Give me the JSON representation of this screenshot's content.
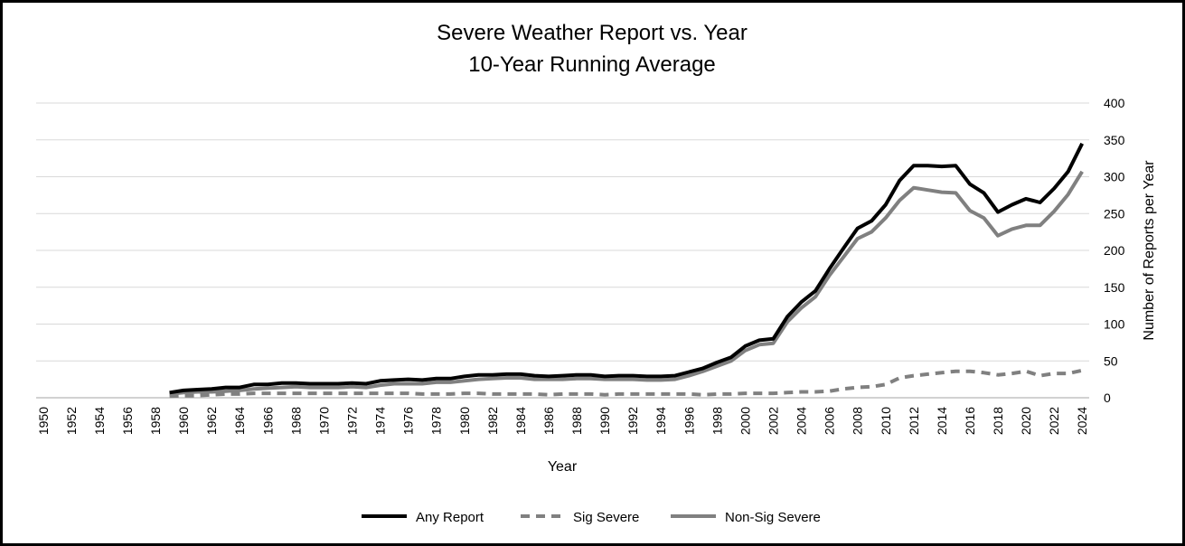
{
  "chart_data": {
    "type": "line",
    "title": "Severe Weather Report vs. Year",
    "subtitle": "10-Year Running Average",
    "xlabel": "Year",
    "ylabel": "Number of Reports per Year",
    "xlim": [
      1950,
      2024
    ],
    "ylim": [
      0,
      400
    ],
    "ytick_step": 50,
    "y_axis_side": "right",
    "x_tick_labels": [
      "1950",
      "1952",
      "1954",
      "1956",
      "1958",
      "1960",
      "1962",
      "1964",
      "1966",
      "1968",
      "1970",
      "1972",
      "1974",
      "1976",
      "1978",
      "1980",
      "1982",
      "1984",
      "1986",
      "1988",
      "1990",
      "1992",
      "1994",
      "1996",
      "1998",
      "2000",
      "2002",
      "2004",
      "2006",
      "2008",
      "2010",
      "2012",
      "2014",
      "2016",
      "2018",
      "2020",
      "2022",
      "2024"
    ],
    "y_tick_labels": [
      "0",
      "50",
      "100",
      "150",
      "200",
      "250",
      "300",
      "350",
      "400"
    ],
    "grid": "horizontal",
    "legend_position": "bottom",
    "x": [
      1959,
      1960,
      1961,
      1962,
      1963,
      1964,
      1965,
      1966,
      1967,
      1968,
      1969,
      1970,
      1971,
      1972,
      1973,
      1974,
      1975,
      1976,
      1977,
      1978,
      1979,
      1980,
      1981,
      1982,
      1983,
      1984,
      1985,
      1986,
      1987,
      1988,
      1989,
      1990,
      1991,
      1992,
      1993,
      1994,
      1995,
      1996,
      1997,
      1998,
      1999,
      2000,
      2001,
      2002,
      2003,
      2004,
      2005,
      2006,
      2007,
      2008,
      2009,
      2010,
      2011,
      2012,
      2013,
      2014,
      2015,
      2016,
      2017,
      2018,
      2019,
      2020,
      2021,
      2022,
      2023,
      2024
    ],
    "series": [
      {
        "name": "Any Report",
        "color": "#000000",
        "dash": "solid",
        "values": [
          7,
          10,
          11,
          12,
          14,
          14,
          18,
          18,
          20,
          20,
          19,
          19,
          19,
          20,
          19,
          23,
          24,
          25,
          24,
          26,
          26,
          29,
          31,
          31,
          32,
          32,
          30,
          29,
          30,
          31,
          31,
          29,
          30,
          30,
          29,
          29,
          30,
          35,
          40,
          48,
          55,
          70,
          78,
          80,
          110,
          130,
          145,
          175,
          203,
          230,
          240,
          262,
          295,
          315,
          315,
          314,
          315,
          290,
          278,
          252,
          262,
          270,
          265,
          284,
          307,
          345
        ]
      },
      {
        "name": "Sig Severe",
        "color": "#808080",
        "dash": "dashed",
        "values": [
          2,
          3,
          3,
          4,
          5,
          5,
          6,
          6,
          6,
          6,
          6,
          6,
          6,
          6,
          6,
          6,
          6,
          6,
          5,
          5,
          5,
          6,
          6,
          5,
          5,
          5,
          5,
          4,
          5,
          5,
          5,
          4,
          5,
          5,
          5,
          5,
          5,
          5,
          4,
          5,
          5,
          6,
          6,
          6,
          7,
          8,
          8,
          9,
          12,
          14,
          15,
          18,
          27,
          30,
          32,
          34,
          36,
          36,
          34,
          31,
          33,
          36,
          30,
          33,
          33,
          37
        ]
      },
      {
        "name": "Non-Sig Severe",
        "color": "#808080",
        "dash": "solid",
        "values": [
          5,
          7,
          8,
          8,
          9,
          10,
          12,
          13,
          14,
          15,
          14,
          14,
          14,
          15,
          14,
          17,
          19,
          19,
          19,
          21,
          21,
          23,
          25,
          26,
          27,
          27,
          25,
          25,
          25,
          26,
          26,
          25,
          25,
          25,
          24,
          24,
          25,
          30,
          36,
          43,
          50,
          64,
          72,
          74,
          103,
          122,
          137,
          166,
          191,
          216,
          225,
          244,
          268,
          285,
          282,
          279,
          278,
          254,
          244,
          220,
          229,
          234,
          234,
          253,
          276,
          307
        ]
      }
    ]
  }
}
